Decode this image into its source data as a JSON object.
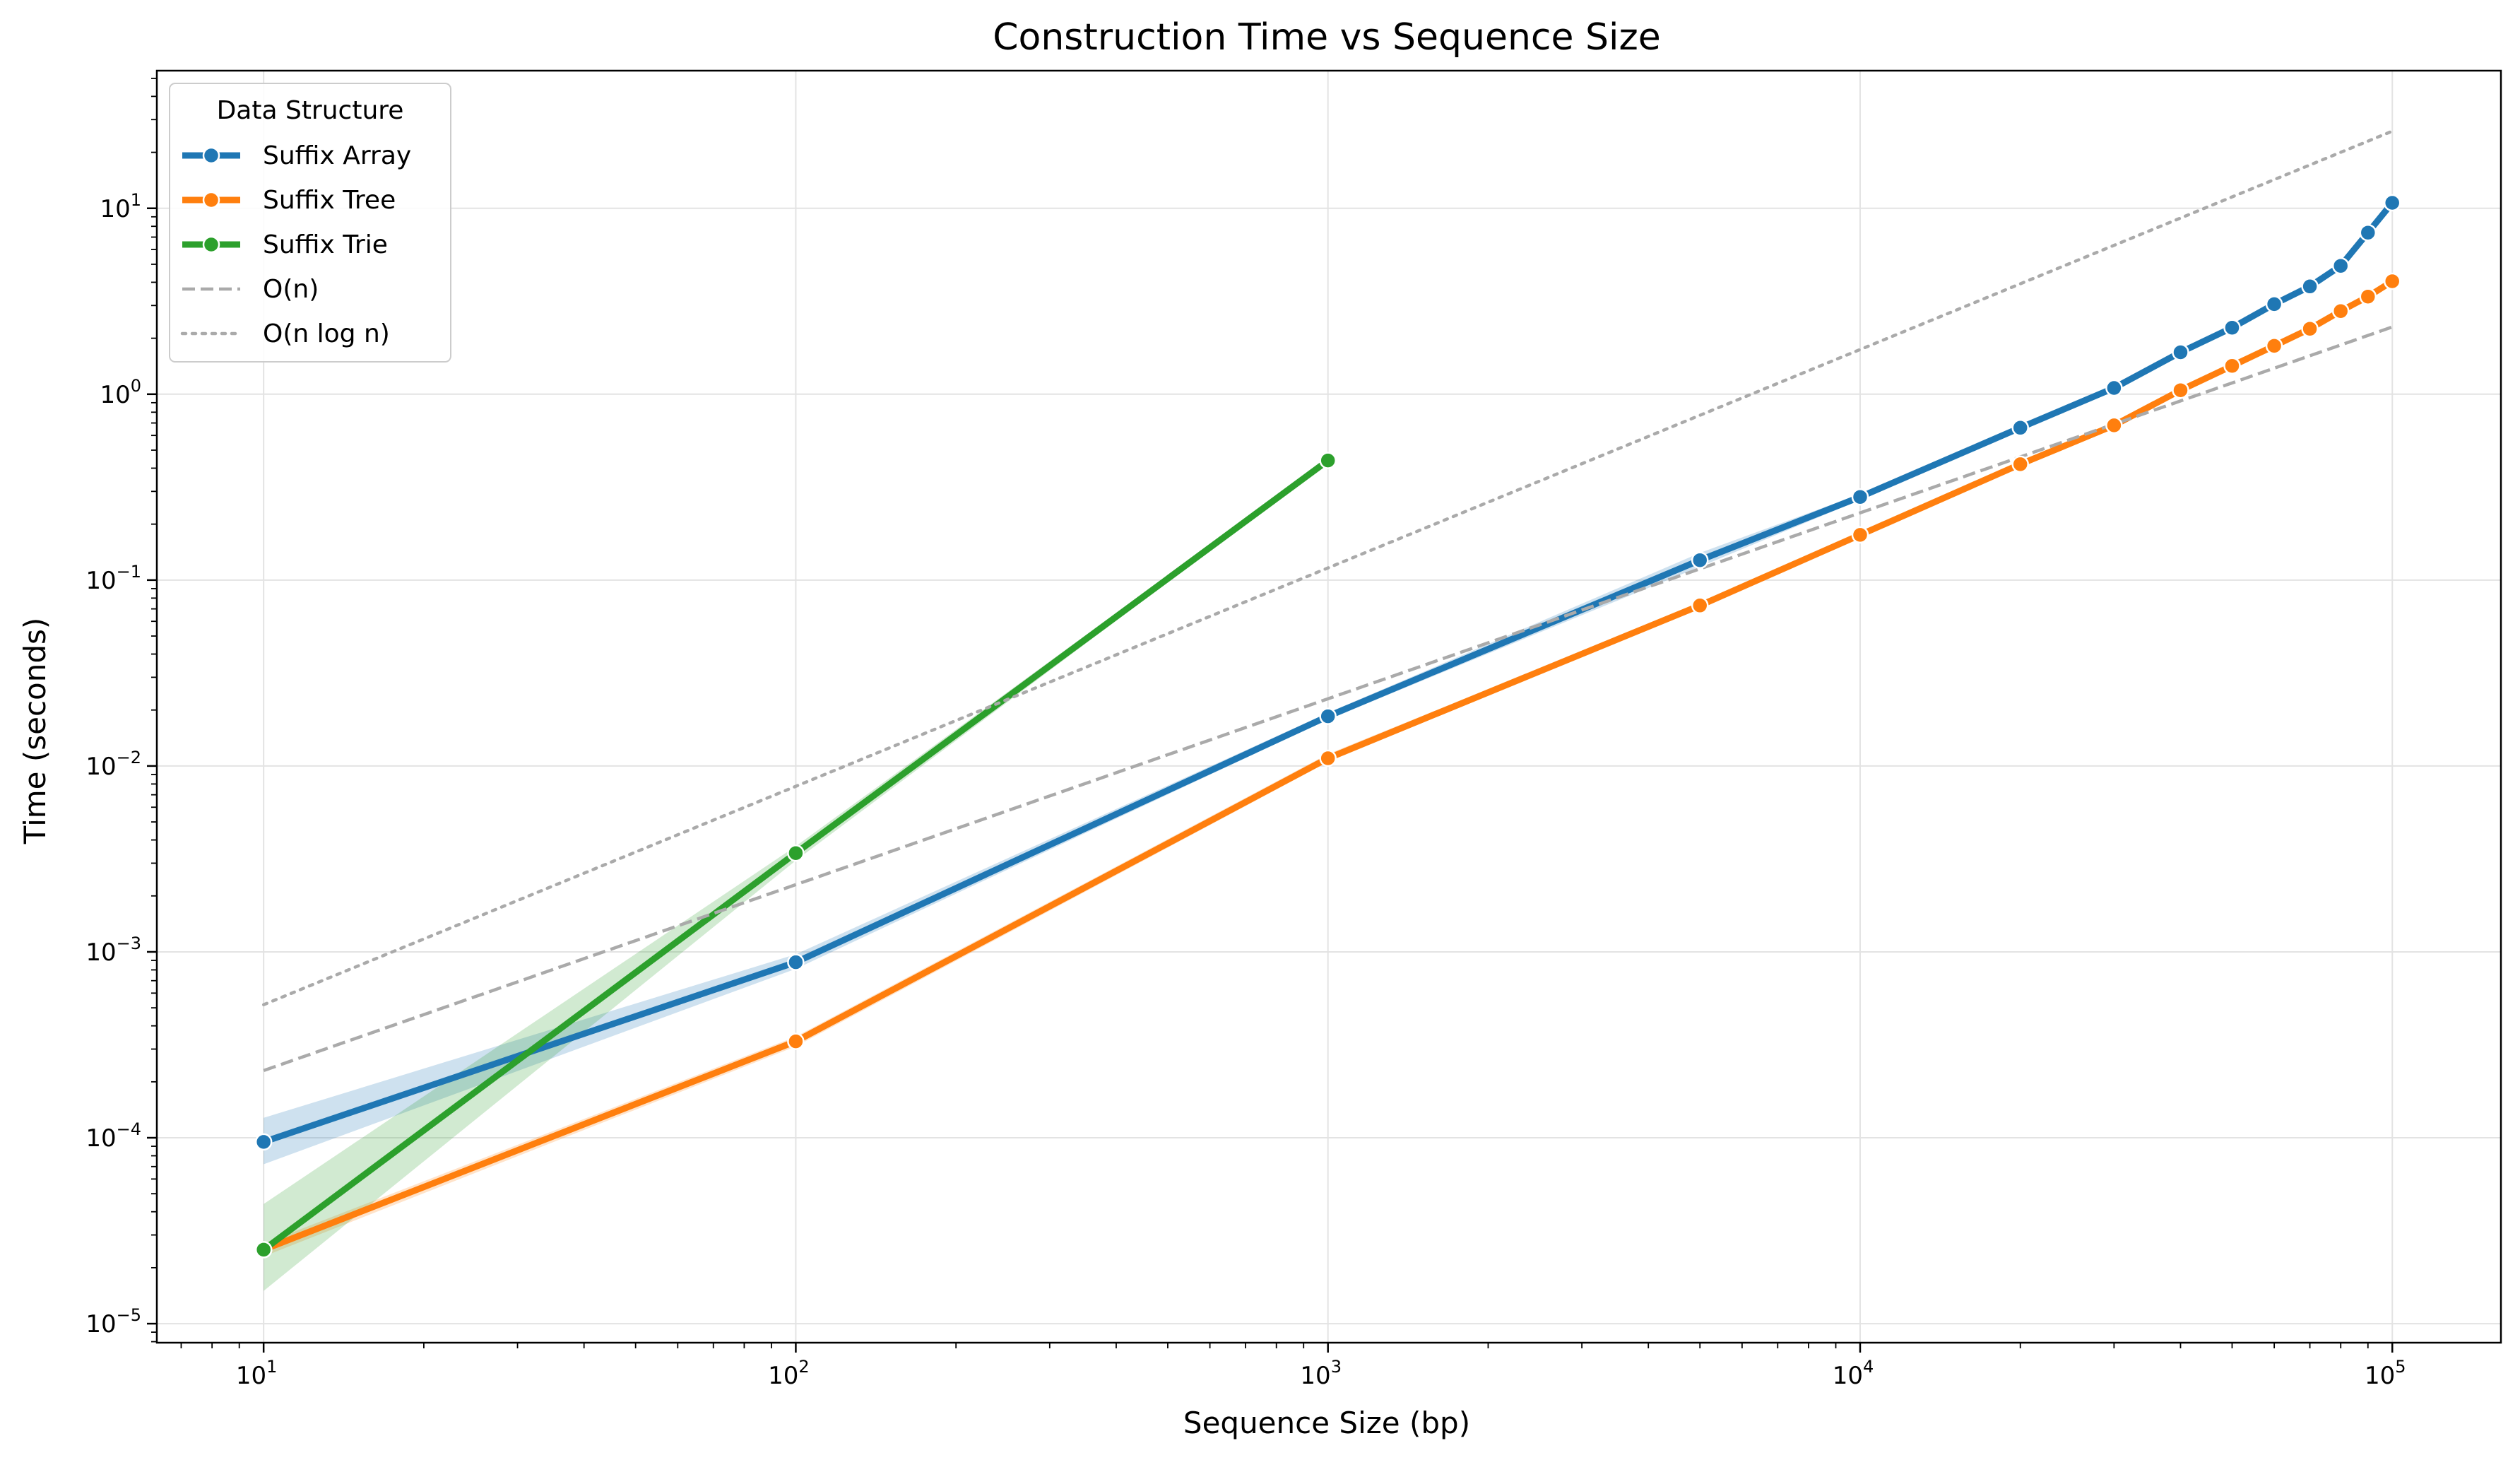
{
  "chart_data": {
    "type": "line",
    "title": "Construction Time vs Sequence Size",
    "xlabel": "Sequence Size (bp)",
    "ylabel": "Time (seconds)",
    "x_scale": "log",
    "y_scale": "log",
    "xlim": [
      6.3,
      160000
    ],
    "ylim": [
      7.9e-06,
      55
    ],
    "x_ticks": [
      {
        "value": 10,
        "label": "10",
        "exp": "1"
      },
      {
        "value": 100,
        "label": "10",
        "exp": "2"
      },
      {
        "value": 1000,
        "label": "10",
        "exp": "3"
      },
      {
        "value": 10000,
        "label": "10",
        "exp": "4"
      },
      {
        "value": 100000,
        "label": "10",
        "exp": "5"
      }
    ],
    "y_ticks": [
      {
        "value": 1e-05,
        "label": "10",
        "exp": "−5"
      },
      {
        "value": 0.0001,
        "label": "10",
        "exp": "−4"
      },
      {
        "value": 0.001,
        "label": "10",
        "exp": "−3"
      },
      {
        "value": 0.01,
        "label": "10",
        "exp": "−2"
      },
      {
        "value": 0.1,
        "label": "10",
        "exp": "−1"
      },
      {
        "value": 1,
        "label": "10",
        "exp": "0"
      },
      {
        "value": 10,
        "label": "10",
        "exp": "1"
      }
    ],
    "grid": true,
    "legend": {
      "title": "Data Structure",
      "position": "top-left"
    },
    "series": [
      {
        "name": "Suffix Array",
        "color": "#1f77b4",
        "style": "solid",
        "markers": true,
        "x": [
          10,
          100,
          1000,
          5000,
          10000,
          20000,
          30000,
          40000,
          50000,
          60000,
          70000,
          80000,
          90000,
          100000
        ],
        "y": [
          9.5e-05,
          0.00088,
          0.0185,
          0.128,
          0.28,
          0.66,
          1.08,
          1.68,
          2.28,
          3.05,
          3.8,
          4.9,
          7.4,
          10.7
        ],
        "y_low": [
          7.2e-05,
          0.00081,
          0.0178,
          0.118,
          0.27,
          0.64,
          1.05,
          1.64,
          2.23,
          2.98,
          3.7,
          4.75,
          7.0,
          10.1
        ],
        "y_high": [
          0.000128,
          0.00097,
          0.0193,
          0.14,
          0.29,
          0.68,
          1.11,
          1.72,
          2.33,
          3.12,
          3.9,
          5.05,
          7.8,
          11.3
        ]
      },
      {
        "name": "Suffix Tree",
        "color": "#ff7f0e",
        "style": "solid",
        "markers": true,
        "x": [
          10,
          100,
          1000,
          5000,
          10000,
          20000,
          30000,
          40000,
          50000,
          60000,
          70000,
          80000,
          90000,
          100000
        ],
        "y": [
          2.5e-05,
          0.00033,
          0.011,
          0.073,
          0.175,
          0.42,
          0.68,
          1.05,
          1.42,
          1.82,
          2.25,
          2.8,
          3.35,
          4.05
        ],
        "y_low": [
          2.3e-05,
          0.00031,
          0.0105,
          0.071,
          0.17,
          0.41,
          0.66,
          1.02,
          1.39,
          1.78,
          2.2,
          2.74,
          3.28,
          3.95
        ],
        "y_high": [
          2.7e-05,
          0.00035,
          0.0116,
          0.075,
          0.18,
          0.43,
          0.7,
          1.08,
          1.45,
          1.86,
          2.3,
          2.86,
          3.42,
          4.15
        ]
      },
      {
        "name": "Suffix Trie",
        "color": "#2ca02c",
        "style": "solid",
        "markers": true,
        "x": [
          10,
          100,
          1000
        ],
        "y": [
          2.5e-05,
          0.0034,
          0.44
        ],
        "y_low": [
          1.5e-05,
          0.0031,
          0.43
        ],
        "y_high": [
          4.4e-05,
          0.0037,
          0.45
        ]
      },
      {
        "name": "O(n)",
        "color": "#aaaaaa",
        "style": "dashed",
        "markers": false,
        "x": [
          10,
          100000
        ],
        "y": [
          0.00023,
          2.3
        ]
      },
      {
        "name": "O(n log n)",
        "color": "#aaaaaa",
        "style": "dotted",
        "markers": false,
        "x": [
          10,
          100000
        ],
        "y": [
          0.00052,
          26
        ]
      }
    ]
  }
}
